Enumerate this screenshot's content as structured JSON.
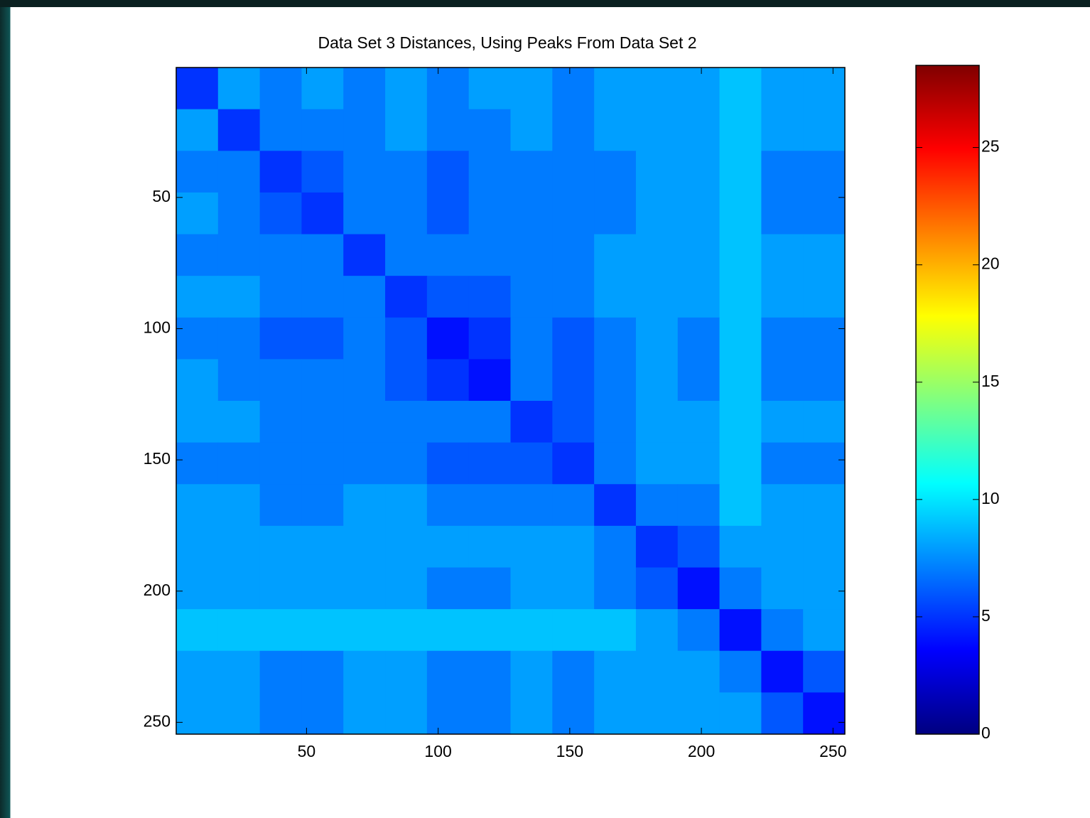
{
  "chart_data": {
    "type": "heatmap",
    "title": "Data Set 3 Distances, Using Peaks From Data Set 2",
    "colormap": "jet",
    "xbins": [
      0.5,
      16.375,
      32.25,
      48.125,
      64,
      79.875,
      95.75,
      111.625,
      127.5,
      143.375,
      159.25,
      175.125,
      191,
      206.875,
      222.75,
      238.625,
      254.5
    ],
    "ybins": [
      0.5,
      16.375,
      32.25,
      48.125,
      64,
      79.875,
      95.75,
      111.625,
      127.5,
      143.375,
      159.25,
      175.125,
      191,
      206.875,
      222.75,
      238.625,
      254.5
    ],
    "values": [
      [
        5,
        8,
        7,
        8,
        7,
        8,
        7,
        8,
        8,
        7,
        8,
        8,
        8,
        9,
        8,
        8
      ],
      [
        8,
        5,
        7,
        7,
        7,
        8,
        7,
        7,
        8,
        7,
        8,
        8,
        8,
        9,
        8,
        8
      ],
      [
        7,
        7,
        5,
        6,
        7,
        7,
        6,
        7,
        7,
        7,
        7,
        8,
        8,
        9,
        7,
        7
      ],
      [
        8,
        7,
        6,
        5,
        7,
        7,
        6,
        7,
        7,
        7,
        7,
        8,
        8,
        9,
        7,
        7
      ],
      [
        7,
        7,
        7,
        7,
        5,
        7,
        7,
        7,
        7,
        7,
        8,
        8,
        8,
        9,
        8,
        8
      ],
      [
        8,
        8,
        7,
        7,
        7,
        5,
        6,
        6,
        7,
        7,
        8,
        8,
        8,
        9,
        8,
        8
      ],
      [
        7,
        7,
        6,
        6,
        7,
        6,
        4,
        5,
        7,
        6,
        7,
        8,
        7,
        9,
        7,
        7
      ],
      [
        8,
        7,
        7,
        7,
        7,
        6,
        5,
        4,
        7,
        6,
        7,
        8,
        7,
        9,
        7,
        7
      ],
      [
        8,
        8,
        7,
        7,
        7,
        7,
        7,
        7,
        5,
        6,
        7,
        8,
        8,
        9,
        8,
        8
      ],
      [
        7,
        7,
        7,
        7,
        7,
        7,
        6,
        6,
        6,
        5,
        7,
        8,
        8,
        9,
        7,
        7
      ],
      [
        8,
        8,
        7,
        7,
        8,
        8,
        7,
        7,
        7,
        7,
        5,
        7,
        7,
        9,
        8,
        8
      ],
      [
        8,
        8,
        8,
        8,
        8,
        8,
        8,
        8,
        8,
        8,
        7,
        5,
        6,
        8,
        8,
        8
      ],
      [
        8,
        8,
        8,
        8,
        8,
        8,
        7,
        7,
        8,
        8,
        7,
        6,
        4,
        7,
        8,
        8
      ],
      [
        9,
        9,
        9,
        9,
        9,
        9,
        9,
        9,
        9,
        9,
        9,
        8,
        7,
        4,
        7,
        8
      ],
      [
        8,
        8,
        7,
        7,
        8,
        8,
        7,
        7,
        8,
        7,
        8,
        8,
        8,
        7,
        4,
        6
      ],
      [
        8,
        8,
        7,
        7,
        8,
        8,
        7,
        7,
        8,
        7,
        8,
        8,
        8,
        8,
        6,
        4
      ]
    ],
    "xlim": [
      0.5,
      254.5
    ],
    "xticks": [
      50,
      100,
      150,
      200,
      250
    ],
    "ylim": [
      0.5,
      254.5
    ],
    "yticks": [
      50,
      100,
      150,
      200,
      250
    ],
    "y_reversed": true,
    "clim": [
      0,
      28.5
    ],
    "cticks": [
      0,
      5,
      10,
      15,
      20,
      25
    ]
  }
}
